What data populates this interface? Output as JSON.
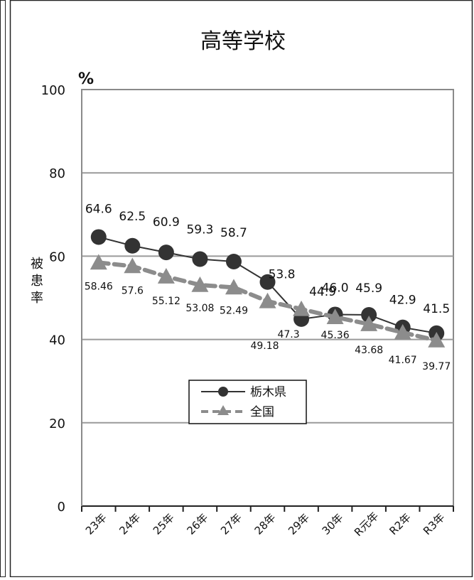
{
  "chart_data": {
    "type": "line",
    "title": "高等学校",
    "ylabel": "被患率",
    "y_unit": "%",
    "ylim": [
      0,
      100
    ],
    "y_ticks": [
      0,
      20,
      40,
      60,
      80,
      100
    ],
    "grid": true,
    "legend_position": "lower-center",
    "categories": [
      "23年",
      "24年",
      "25年",
      "26年",
      "27年",
      "28年",
      "29年",
      "30年",
      "R元年",
      "R2年",
      "R3年"
    ],
    "series": [
      {
        "name": "栃木県",
        "values": [
          64.6,
          62.5,
          60.9,
          59.3,
          58.7,
          53.8,
          44.9,
          46.0,
          45.9,
          42.9,
          41.5
        ],
        "labels": [
          "64.6",
          "62.5",
          "60.9",
          "59.3",
          "58.7",
          "53.8",
          "44.9",
          "46.0",
          "45.9",
          "42.9",
          "41.5"
        ],
        "color": "#333333",
        "marker": "circle",
        "line_style": "solid"
      },
      {
        "name": "全国",
        "values": [
          58.46,
          57.6,
          55.12,
          53.08,
          52.49,
          49.18,
          47.3,
          45.36,
          43.68,
          41.67,
          39.77
        ],
        "labels": [
          "58.46",
          "57.6",
          "55.12",
          "53.08",
          "52.49",
          "49.18",
          "47.3",
          "45.36",
          "43.68",
          "41.67",
          "39.77"
        ],
        "color": "#8c8c8c",
        "marker": "triangle",
        "line_style": "dashed"
      }
    ]
  }
}
